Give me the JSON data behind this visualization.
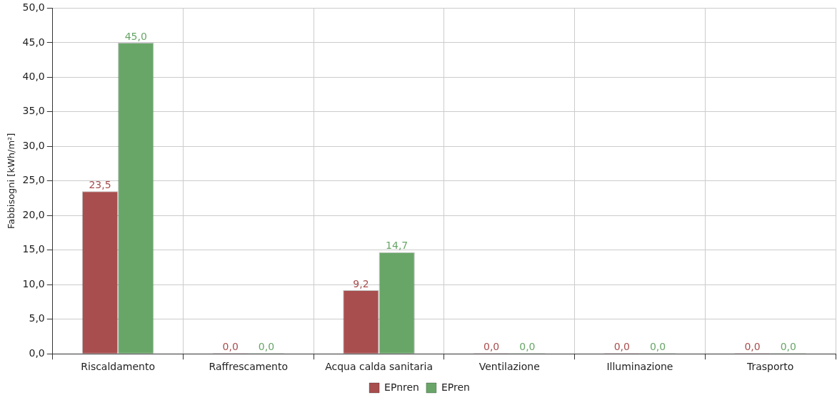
{
  "chart_data": {
    "type": "bar",
    "ylabel": "Fabbisogni [kWh/m²]",
    "categories": [
      "Riscaldamento",
      "Raffrescamento",
      "Acqua calda sanitaria",
      "Ventilazione",
      "Illuminazione",
      "Trasporto"
    ],
    "series": [
      {
        "name": "EPnren",
        "color": "#a84e4e",
        "values": [
          23.5,
          0,
          9.2,
          0,
          0,
          0
        ],
        "value_labels": [
          "23,5",
          "0,0",
          "9,2",
          "0,0",
          "0,0",
          "0,0"
        ]
      },
      {
        "name": "EPren",
        "color": "#68a668",
        "values": [
          45,
          0,
          14.7,
          0,
          0,
          0
        ],
        "value_labels": [
          "45,0",
          "0,0",
          "14,7",
          "0,0",
          "0,0",
          "0,0"
        ]
      }
    ],
    "ylim": [
      0,
      50
    ],
    "yticks": [
      {
        "value": 0,
        "label": "0,0"
      },
      {
        "value": 5,
        "label": "5,0"
      },
      {
        "value": 10,
        "label": "10,0"
      },
      {
        "value": 15,
        "label": "15,0"
      },
      {
        "value": 20,
        "label": "20,0"
      },
      {
        "value": 25,
        "label": "25,0"
      },
      {
        "value": 30,
        "label": "30,0"
      },
      {
        "value": 35,
        "label": "35,0"
      },
      {
        "value": 40,
        "label": "40,0"
      },
      {
        "value": 45,
        "label": "45,0"
      },
      {
        "value": 50,
        "label": "50,0"
      }
    ],
    "grid": true,
    "legend": "bottom"
  }
}
